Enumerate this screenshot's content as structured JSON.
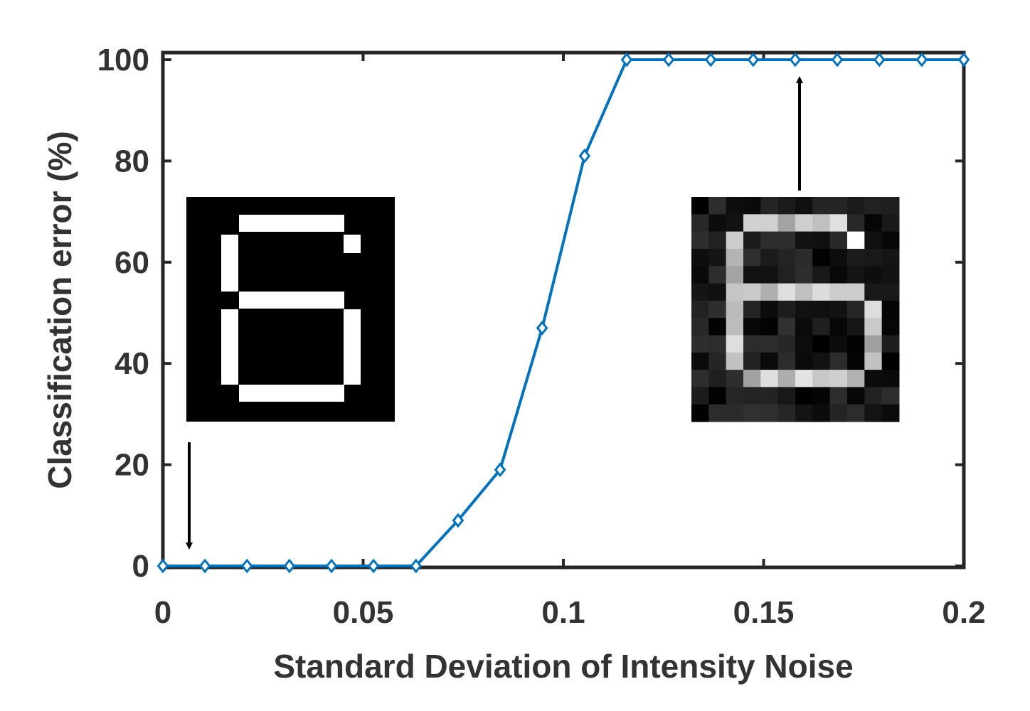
{
  "chart_data": {
    "type": "line",
    "title": "",
    "xlabel": "Standard Deviation of Intensity Noise",
    "ylabel": "Classification error (%)",
    "xlim": [
      0,
      0.2
    ],
    "ylim": [
      0,
      100
    ],
    "xticks": [
      0,
      0.05,
      0.1,
      0.15,
      0.2
    ],
    "xtick_labels": [
      "0",
      "0.05",
      "0.1",
      "0.15",
      "0.2"
    ],
    "yticks": [
      0,
      20,
      40,
      60,
      80,
      100
    ],
    "ytick_labels": [
      "0",
      "20",
      "40",
      "60",
      "80",
      "100"
    ],
    "grid": false,
    "legend": "none",
    "series": [
      {
        "color": "#0072BD",
        "marker": "diamond",
        "x": [
          0,
          0.0105,
          0.021,
          0.0316,
          0.0421,
          0.0526,
          0.0632,
          0.0737,
          0.0842,
          0.0947,
          0.1053,
          0.1158,
          0.1263,
          0.1368,
          0.1474,
          0.1579,
          0.1684,
          0.1789,
          0.1895,
          0.2
        ],
        "y": [
          0,
          0,
          0,
          0,
          0,
          0,
          0,
          9,
          19,
          47,
          81,
          100,
          100,
          100,
          100,
          100,
          100,
          100,
          100,
          100
        ]
      }
    ],
    "insets": [
      {
        "name": "clean-digit-six",
        "description_digit": "6",
        "color": "#000000"
      },
      {
        "name": "noisy-digit-six",
        "description_digit": "6",
        "color": "#000000"
      }
    ]
  }
}
